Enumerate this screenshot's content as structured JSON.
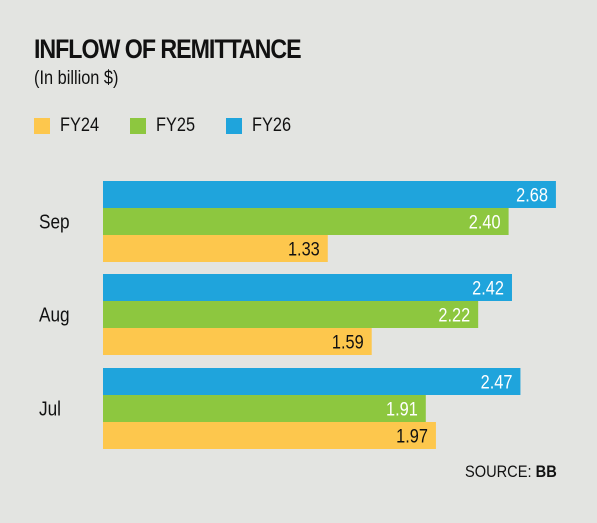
{
  "title": "INFLOW OF REMITTANCE",
  "subtitle": "(In billion $)",
  "source_label": "SOURCE:",
  "source_value": "BB",
  "colors": {
    "FY24": "#fdc74d",
    "FY25": "#8dc73f",
    "FY26": "#1fa4dc",
    "background": "#e3e4e1"
  },
  "chart_data": {
    "type": "bar",
    "orientation": "horizontal",
    "categories": [
      "Sep",
      "Aug",
      "Jul"
    ],
    "series": [
      {
        "name": "FY26",
        "values": [
          2.68,
          2.42,
          2.47
        ]
      },
      {
        "name": "FY25",
        "values": [
          2.4,
          2.22,
          1.91
        ]
      },
      {
        "name": "FY24",
        "values": [
          1.33,
          1.59,
          1.97
        ]
      }
    ],
    "legend": [
      "FY24",
      "FY25",
      "FY26"
    ],
    "legend_placement": "top-left",
    "data_labels": true,
    "grid": false,
    "xlim": [
      0,
      2.68
    ]
  }
}
